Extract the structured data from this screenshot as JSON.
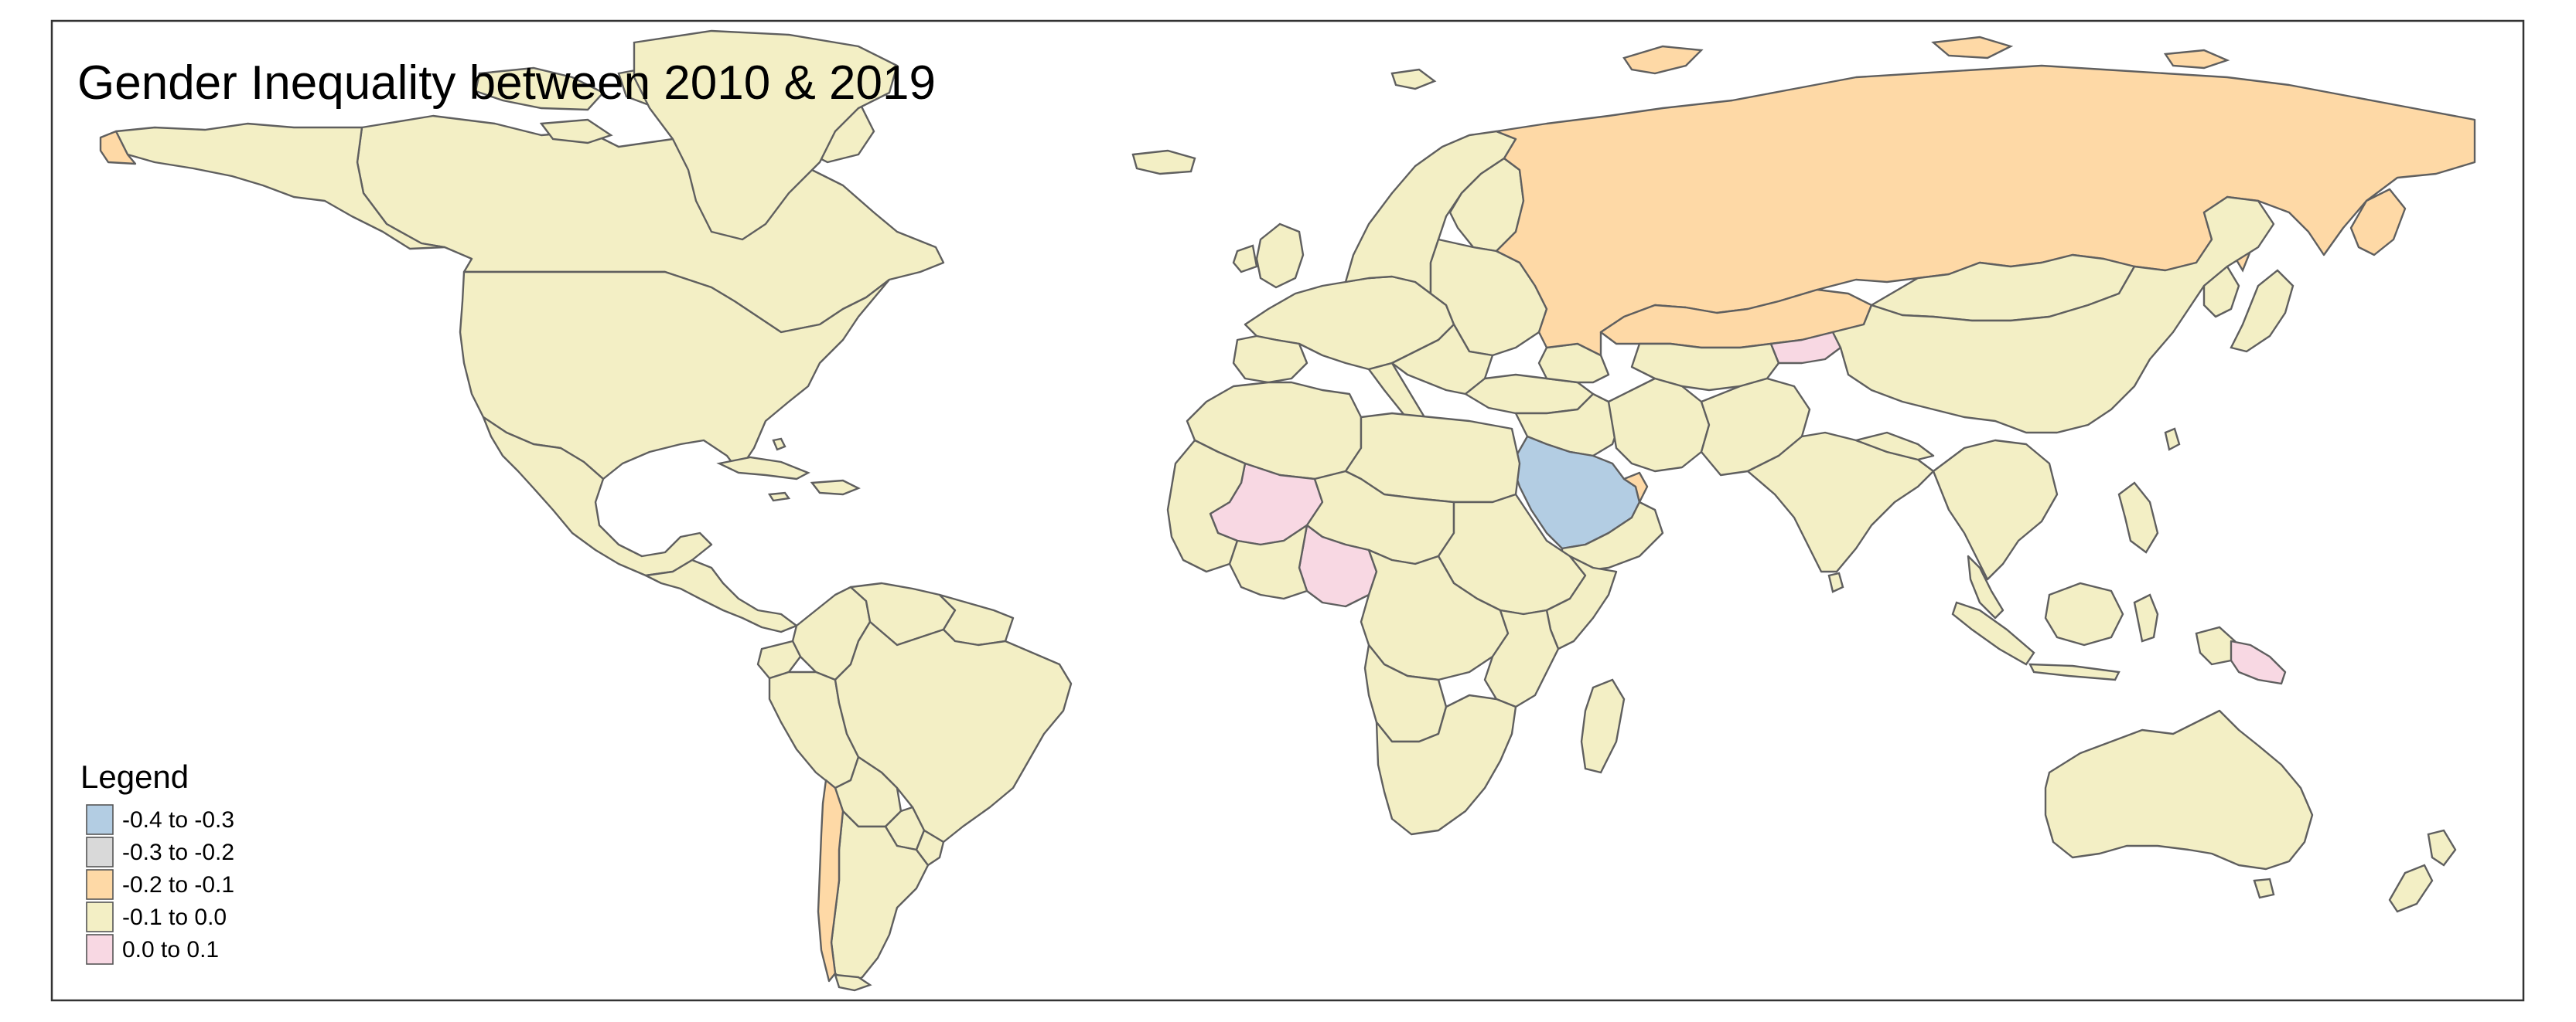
{
  "map": {
    "title": "Gender Inequality between 2010 & 2019",
    "legend": {
      "title": "Legend",
      "classes": [
        {
          "label": "-0.4 to -0.3",
          "color": "#b3cde3"
        },
        {
          "label": "-0.3 to -0.2",
          "color": "#d9d9d9"
        },
        {
          "label": "-0.2 to -0.1",
          "color": "#fed9a6"
        },
        {
          "label": "-0.1 to 0.0",
          "color": "#f3efc5"
        },
        {
          "label": "0.0 to 0.1",
          "color": "#f8d8e3"
        }
      ]
    },
    "colors": {
      "default_land": "#f3efc5",
      "border": "#5f5f5f",
      "frame": "#333333",
      "ocean": "#ffffff"
    }
  }
}
